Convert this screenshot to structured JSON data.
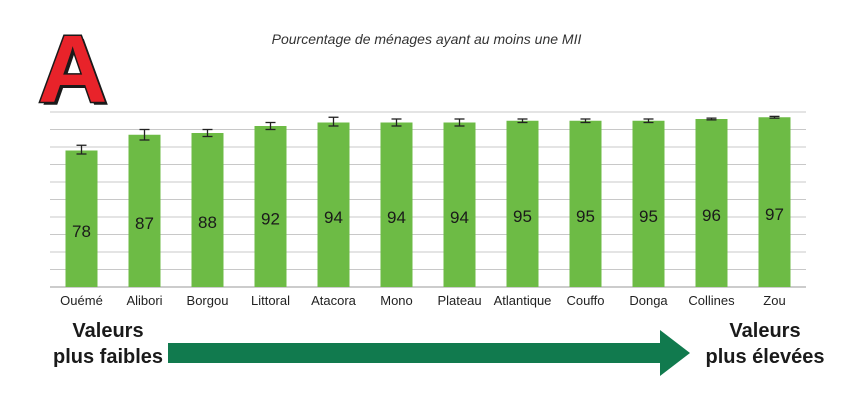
{
  "panel_letter": "A",
  "colors": {
    "bar": "#6dbb45",
    "arrow": "#117a4e",
    "letter": "#e8232a",
    "grid": "#c8c8c8"
  },
  "chart_data": {
    "type": "bar",
    "title": "Pourcentage de ménages ayant au moins une MII",
    "categories": [
      "Ouémé",
      "Alibori",
      "Borgou",
      "Littoral",
      "Atacora",
      "Mono",
      "Plateau",
      "Atlantique",
      "Couffo",
      "Donga",
      "Collines",
      "Zou"
    ],
    "values": [
      78,
      87,
      88,
      92,
      94,
      94,
      94,
      95,
      95,
      95,
      96,
      97
    ],
    "error_low": [
      76,
      84,
      86,
      90,
      92,
      92,
      92,
      94,
      94,
      94,
      95.5,
      96.5
    ],
    "error_high": [
      81,
      90,
      90,
      94,
      97,
      96,
      96,
      96,
      96,
      96,
      96.5,
      97.5
    ],
    "ylim": [
      0,
      100
    ],
    "grid": true,
    "legend": "none"
  },
  "annotations": {
    "low_line1": "Valeurs",
    "low_line2": "plus faibles",
    "high_line1": "Valeurs",
    "high_line2": "plus élevées"
  }
}
